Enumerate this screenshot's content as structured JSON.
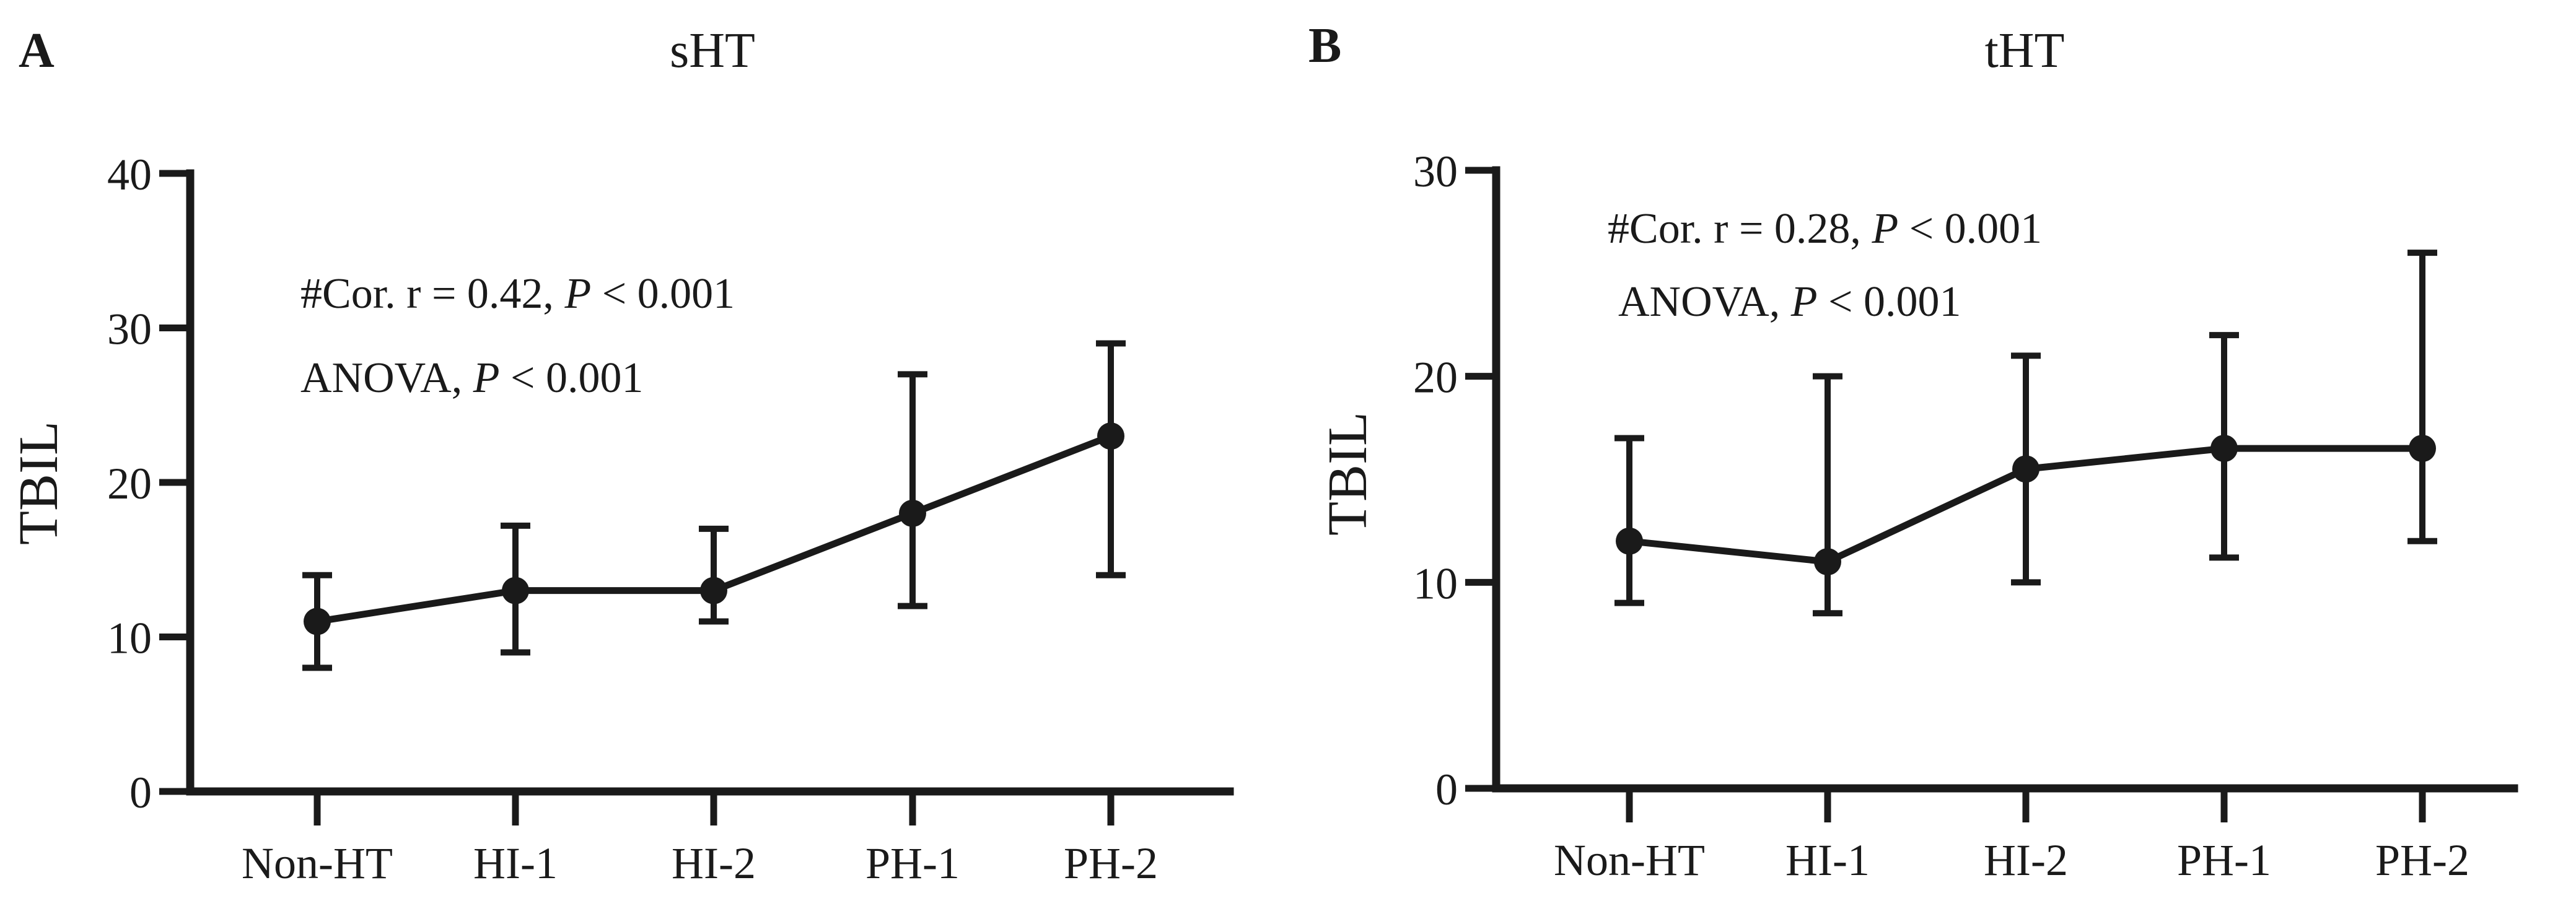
{
  "chart_data": [
    {
      "type": "line",
      "panel_label": "A",
      "title": "sHT",
      "ylabel": "TBIL",
      "xlabel": "",
      "categories": [
        "Non-HT",
        "HI-1",
        "HI-2",
        "PH-1",
        "PH-2"
      ],
      "values": [
        11,
        13,
        13,
        18,
        23
      ],
      "error_low": [
        8,
        9,
        11,
        12,
        14
      ],
      "error_high": [
        14,
        17.2,
        17,
        27,
        29
      ],
      "ylim": [
        0,
        40
      ],
      "yticks": [
        0,
        10,
        20,
        30,
        40
      ],
      "annotations": [
        {
          "prefix": "#Cor. r = 0.42, ",
          "italic": "P",
          "suffix": " < 0.001"
        },
        {
          "prefix": "ANOVA, ",
          "italic": "P",
          "suffix": " < 0.001"
        }
      ]
    },
    {
      "type": "line",
      "panel_label": "B",
      "title": "tHT",
      "ylabel": "TBIL",
      "xlabel": "",
      "categories": [
        "Non-HT",
        "HI-1",
        "HI-2",
        "PH-1",
        "PH-2"
      ],
      "values": [
        12,
        11,
        15.5,
        16.5,
        16.5
      ],
      "error_low": [
        9,
        8.5,
        10,
        11.2,
        12
      ],
      "error_high": [
        17,
        20,
        21,
        22,
        26
      ],
      "ylim": [
        0,
        30
      ],
      "yticks": [
        0,
        10,
        20,
        30
      ],
      "annotations": [
        {
          "prefix": "#Cor. r = 0.28, ",
          "italic": "P",
          "suffix": " < 0.001"
        },
        {
          "prefix": "ANOVA, ",
          "italic": "P",
          "suffix": " < 0.001"
        }
      ]
    }
  ]
}
